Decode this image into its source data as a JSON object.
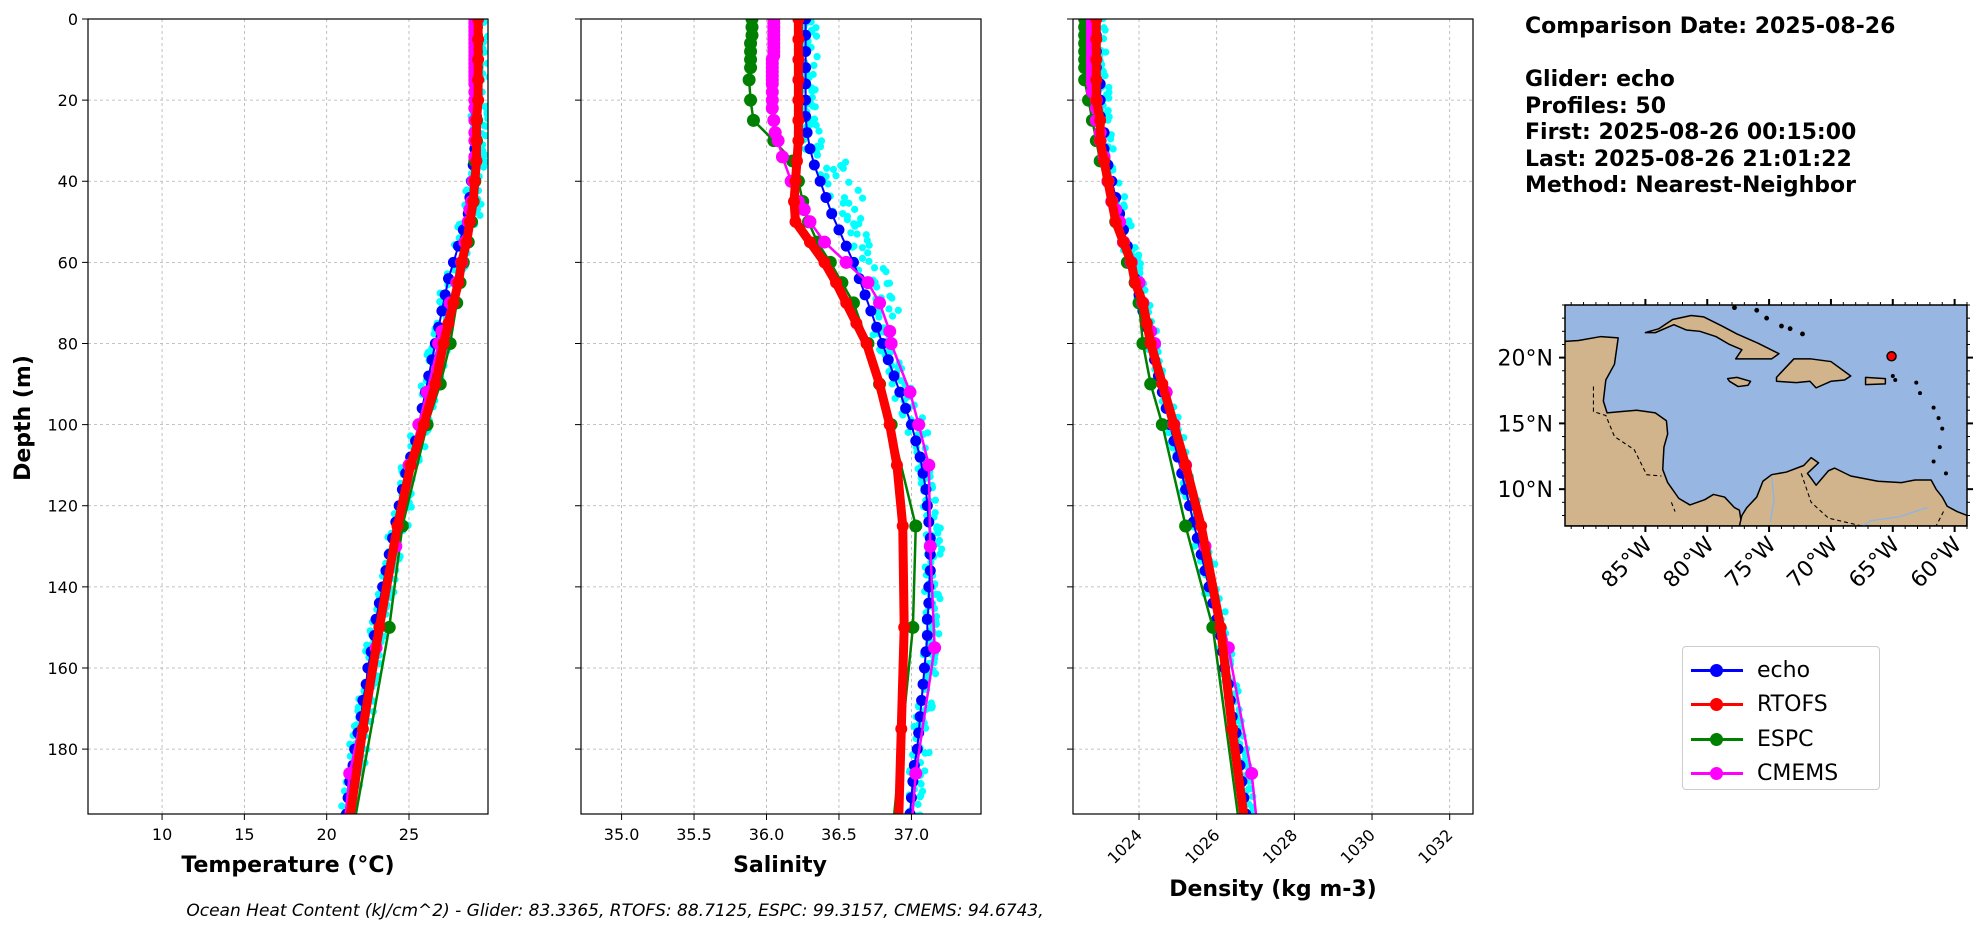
{
  "info": {
    "comparison_date": "Comparison Date: 2025-08-26",
    "glider": "Glider: echo",
    "profiles": "Profiles: 50",
    "first": "First: 2025-08-26 00:15:00",
    "last": "Last: 2025-08-26 21:01:22",
    "method": "Method: Nearest-Neighbor"
  },
  "footer": "Ocean Heat Content (kJ/cm^2) - Glider: 83.3365,  RTOFS: 88.7125,  ESPC: 99.3157,  CMEMS: 94.6743,",
  "colors": {
    "echo": "#0000ff",
    "RTOFS": "#ff0000",
    "ESPC": "#008000",
    "CMEMS": "#ff00ff",
    "glider_raw": "#00ffff",
    "land": "#d2b48c",
    "ocean": "#97b6e1"
  },
  "legend": [
    {
      "name": "echo",
      "color": "#0000ff"
    },
    {
      "name": "RTOFS",
      "color": "#ff0000"
    },
    {
      "name": "ESPC",
      "color": "#008000"
    },
    {
      "name": "CMEMS",
      "color": "#ff00ff"
    }
  ],
  "chart_data": [
    {
      "type": "line",
      "xlabel": "Temperature (°C)",
      "ylabel": "Depth (m)",
      "xlim": [
        5.5,
        29.8
      ],
      "ylim": [
        196,
        0
      ],
      "xticks": [
        10,
        15,
        20,
        25
      ],
      "yticks": [
        0,
        20,
        40,
        60,
        80,
        100,
        120,
        140,
        160,
        180
      ],
      "grid": true,
      "series": [
        {
          "name": "echo",
          "depth": [
            0,
            4,
            8,
            12,
            16,
            20,
            24,
            28,
            32,
            36,
            40,
            44,
            48,
            52,
            56,
            60,
            64,
            68,
            72,
            76,
            80,
            84,
            88,
            92,
            96,
            100,
            104,
            108,
            112,
            116,
            120,
            124,
            128,
            132,
            136,
            140,
            144,
            148,
            152,
            156,
            160,
            164,
            168,
            172,
            176,
            180,
            184,
            188,
            192,
            196
          ],
          "values": [
            29.1,
            29.1,
            29.1,
            29.1,
            29.1,
            29.1,
            29.1,
            29.0,
            29.0,
            28.9,
            28.8,
            28.7,
            28.6,
            28.3,
            28.0,
            27.7,
            27.4,
            27.2,
            27.0,
            26.8,
            26.6,
            26.4,
            26.2,
            26.0,
            25.8,
            25.6,
            25.4,
            25.1,
            24.8,
            24.6,
            24.4,
            24.2,
            24.0,
            23.8,
            23.6,
            23.4,
            23.2,
            23.0,
            22.9,
            22.7,
            22.5,
            22.4,
            22.2,
            22.1,
            21.9,
            21.7,
            21.6,
            21.4,
            21.3,
            21.2
          ]
        },
        {
          "name": "RTOFS",
          "depth": [
            0,
            5,
            10,
            15,
            20,
            25,
            30,
            35,
            40,
            45,
            50,
            55,
            60,
            65,
            70,
            75,
            80,
            90,
            100,
            110,
            125,
            150,
            175,
            200
          ],
          "values": [
            29.2,
            29.2,
            29.2,
            29.2,
            29.2,
            29.1,
            29.1,
            29.1,
            29.0,
            28.9,
            28.7,
            28.5,
            28.2,
            28.0,
            27.7,
            27.4,
            27.1,
            26.6,
            25.9,
            25.1,
            24.3,
            23.2,
            22.2,
            21.3
          ]
        },
        {
          "name": "ESPC",
          "depth": [
            0,
            2,
            4,
            6,
            8,
            10,
            12,
            15,
            20,
            25,
            30,
            35,
            40,
            45,
            50,
            55,
            60,
            65,
            70,
            80,
            90,
            100,
            125,
            150,
            200
          ],
          "values": [
            29.1,
            29.1,
            29.1,
            29.1,
            29.1,
            29.1,
            29.1,
            29.1,
            29.1,
            29.1,
            29.1,
            29.0,
            29.0,
            28.9,
            28.8,
            28.6,
            28.3,
            28.1,
            27.9,
            27.5,
            26.9,
            26.1,
            24.6,
            23.8,
            21.6
          ]
        },
        {
          "name": "CMEMS",
          "depth": [
            0,
            1,
            2,
            3,
            4,
            5,
            6,
            7,
            8,
            9,
            10,
            11,
            12,
            13,
            14,
            15,
            16,
            18,
            20,
            22,
            25,
            28,
            30,
            34,
            40,
            45,
            47,
            50,
            55,
            60,
            65,
            70,
            77,
            80,
            92,
            100,
            110,
            130,
            155,
            186,
            222
          ],
          "values": [
            29.0,
            29.0,
            29.0,
            29.0,
            29.0,
            29.0,
            29.0,
            29.0,
            29.0,
            29.0,
            29.0,
            29.0,
            29.0,
            29.0,
            29.0,
            29.0,
            29.0,
            29.0,
            29.0,
            29.0,
            29.0,
            29.0,
            29.0,
            29.0,
            28.9,
            28.8,
            28.7,
            28.6,
            28.4,
            28.2,
            27.9,
            27.5,
            27.0,
            26.8,
            26.1,
            25.6,
            25.0,
            24.2,
            23.0,
            21.4,
            20.5
          ]
        }
      ],
      "glider_raw": {
        "name": "glider",
        "depth_range": [
          0,
          196
        ],
        "value_center": [
          29.0,
          27.5,
          25.2,
          23.5,
          21.8
        ],
        "spread": 0.8
      }
    },
    {
      "type": "line",
      "xlabel": "Salinity",
      "xlim": [
        34.72,
        37.48
      ],
      "ylim": [
        196,
        0
      ],
      "xticks": [
        35.0,
        35.5,
        36.0,
        36.5,
        37.0
      ],
      "grid": true,
      "series": [
        {
          "name": "echo",
          "depth": [
            0,
            4,
            8,
            12,
            16,
            20,
            24,
            28,
            32,
            36,
            40,
            44,
            48,
            52,
            56,
            60,
            64,
            68,
            72,
            76,
            80,
            84,
            88,
            92,
            96,
            100,
            104,
            108,
            112,
            116,
            120,
            124,
            128,
            132,
            136,
            140,
            144,
            148,
            152,
            156,
            160,
            164,
            168,
            172,
            176,
            180,
            184,
            188,
            192,
            196
          ],
          "values": [
            36.27,
            36.27,
            36.27,
            36.27,
            36.27,
            36.27,
            36.27,
            36.28,
            36.3,
            36.33,
            36.37,
            36.41,
            36.45,
            36.5,
            36.55,
            36.6,
            36.64,
            36.68,
            36.72,
            36.76,
            36.8,
            36.84,
            36.88,
            36.92,
            36.96,
            37.0,
            37.03,
            37.06,
            37.08,
            37.1,
            37.11,
            37.12,
            37.13,
            37.13,
            37.13,
            37.12,
            37.12,
            37.11,
            37.11,
            37.1,
            37.09,
            37.08,
            37.07,
            37.06,
            37.05,
            37.04,
            37.02,
            37.01,
            37.0,
            36.99
          ]
        },
        {
          "name": "RTOFS",
          "depth": [
            0,
            5,
            10,
            15,
            20,
            25,
            30,
            35,
            40,
            45,
            50,
            55,
            60,
            65,
            70,
            75,
            80,
            90,
            100,
            110,
            125,
            150,
            175,
            200
          ],
          "values": [
            36.22,
            36.22,
            36.22,
            36.22,
            36.22,
            36.22,
            36.22,
            36.21,
            36.2,
            36.19,
            36.2,
            36.3,
            36.4,
            36.48,
            36.55,
            36.62,
            36.69,
            36.78,
            36.85,
            36.9,
            36.94,
            36.95,
            36.93,
            36.91
          ]
        },
        {
          "name": "ESPC",
          "depth": [
            0,
            2,
            4,
            6,
            8,
            10,
            12,
            15,
            20,
            25,
            30,
            35,
            40,
            45,
            50,
            55,
            60,
            65,
            70,
            80,
            90,
            100,
            125,
            150,
            200
          ],
          "values": [
            35.9,
            35.9,
            35.9,
            35.89,
            35.89,
            35.89,
            35.89,
            35.88,
            35.89,
            35.91,
            36.05,
            36.18,
            36.22,
            36.25,
            36.29,
            36.35,
            36.44,
            36.52,
            36.6,
            36.7,
            36.78,
            36.86,
            37.03,
            37.01,
            36.87
          ]
        },
        {
          "name": "CMEMS",
          "depth": [
            0,
            1,
            2,
            3,
            4,
            5,
            6,
            7,
            8,
            9,
            10,
            11,
            12,
            13,
            14,
            15,
            16,
            18,
            20,
            22,
            25,
            28,
            30,
            34,
            40,
            45,
            47,
            50,
            55,
            60,
            65,
            70,
            77,
            80,
            92,
            100,
            110,
            130,
            155,
            186,
            222
          ],
          "values": [
            36.05,
            36.05,
            36.05,
            36.05,
            36.05,
            36.05,
            36.05,
            36.05,
            36.05,
            36.05,
            36.04,
            36.04,
            36.04,
            36.04,
            36.04,
            36.04,
            36.04,
            36.04,
            36.04,
            36.04,
            36.05,
            36.06,
            36.08,
            36.11,
            36.17,
            36.22,
            36.26,
            36.3,
            36.4,
            36.55,
            36.7,
            36.78,
            36.85,
            36.86,
            36.99,
            37.05,
            37.12,
            37.13,
            37.16,
            37.03,
            36.95
          ]
        }
      ],
      "glider_raw": {
        "name": "glider",
        "depth_range": [
          0,
          196
        ]
      }
    },
    {
      "type": "line",
      "xlabel": "Density (kg m-3)",
      "xlim": [
        1022.3,
        1032.6
      ],
      "ylim": [
        196,
        0
      ],
      "xticks": [
        1024,
        1026,
        1028,
        1030,
        1032
      ],
      "grid": true,
      "series": [
        {
          "name": "echo",
          "depth": [
            0,
            4,
            8,
            12,
            16,
            20,
            24,
            28,
            32,
            36,
            40,
            44,
            48,
            52,
            56,
            60,
            64,
            68,
            72,
            76,
            80,
            84,
            88,
            92,
            96,
            100,
            104,
            108,
            112,
            116,
            120,
            124,
            128,
            132,
            136,
            140,
            144,
            148,
            152,
            156,
            160,
            164,
            168,
            172,
            176,
            180,
            184,
            188,
            192,
            196
          ],
          "values": [
            1022.9,
            1022.9,
            1022.9,
            1022.9,
            1023.0,
            1023.0,
            1023.0,
            1023.1,
            1023.1,
            1023.2,
            1023.3,
            1023.4,
            1023.5,
            1023.6,
            1023.7,
            1023.8,
            1023.9,
            1024.0,
            1024.1,
            1024.2,
            1024.3,
            1024.4,
            1024.5,
            1024.6,
            1024.7,
            1024.8,
            1024.9,
            1025.0,
            1025.1,
            1025.2,
            1025.3,
            1025.4,
            1025.5,
            1025.6,
            1025.7,
            1025.8,
            1025.9,
            1026.0,
            1026.1,
            1026.15,
            1026.2,
            1026.3,
            1026.35,
            1026.4,
            1026.5,
            1026.55,
            1026.6,
            1026.65,
            1026.7,
            1026.75
          ]
        },
        {
          "name": "RTOFS",
          "depth": [
            0,
            5,
            10,
            15,
            20,
            25,
            30,
            35,
            40,
            45,
            50,
            55,
            60,
            65,
            70,
            75,
            80,
            90,
            100,
            110,
            125,
            150,
            175,
            200
          ],
          "values": [
            1022.9,
            1022.9,
            1022.9,
            1022.9,
            1022.9,
            1023.0,
            1023.0,
            1023.1,
            1023.2,
            1023.3,
            1023.4,
            1023.6,
            1023.8,
            1023.9,
            1024.1,
            1024.2,
            1024.3,
            1024.6,
            1024.9,
            1025.2,
            1025.6,
            1026.1,
            1026.4,
            1026.75
          ]
        },
        {
          "name": "ESPC",
          "depth": [
            0,
            2,
            4,
            6,
            8,
            10,
            12,
            15,
            20,
            25,
            30,
            35,
            40,
            45,
            50,
            55,
            60,
            65,
            70,
            80,
            90,
            100,
            125,
            150,
            200
          ],
          "values": [
            1022.6,
            1022.6,
            1022.6,
            1022.6,
            1022.6,
            1022.6,
            1022.6,
            1022.6,
            1022.7,
            1022.8,
            1022.9,
            1023.0,
            1023.2,
            1023.3,
            1023.4,
            1023.6,
            1023.7,
            1023.9,
            1024.0,
            1024.1,
            1024.3,
            1024.6,
            1025.2,
            1025.9,
            1026.6
          ]
        },
        {
          "name": "CMEMS",
          "depth": [
            0,
            1,
            2,
            3,
            4,
            5,
            6,
            7,
            8,
            9,
            10,
            11,
            12,
            13,
            14,
            15,
            16,
            18,
            20,
            22,
            25,
            28,
            30,
            34,
            40,
            45,
            47,
            50,
            55,
            60,
            65,
            70,
            77,
            80,
            92,
            100,
            110,
            130,
            155,
            186,
            222
          ],
          "values": [
            1022.8,
            1022.8,
            1022.8,
            1022.8,
            1022.8,
            1022.8,
            1022.8,
            1022.8,
            1022.8,
            1022.8,
            1022.8,
            1022.8,
            1022.8,
            1022.8,
            1022.8,
            1022.8,
            1022.8,
            1022.8,
            1022.9,
            1022.9,
            1022.9,
            1023.0,
            1023.0,
            1023.1,
            1023.2,
            1023.3,
            1023.4,
            1023.5,
            1023.6,
            1023.8,
            1024.0,
            1024.1,
            1024.3,
            1024.4,
            1024.7,
            1024.9,
            1025.2,
            1025.7,
            1026.3,
            1026.9,
            1027.3
          ]
        }
      ],
      "glider_raw": {
        "name": "glider",
        "depth_range": [
          0,
          196
        ]
      }
    },
    {
      "type": "map",
      "lon_range": [
        -91.5,
        -59.0
      ],
      "lat_range": [
        7.2,
        24.0
      ],
      "xticks": [
        "85°W",
        "80°W",
        "75°W",
        "70°W",
        "65°W",
        "60°W"
      ],
      "xtick_values": [
        -85,
        -80,
        -75,
        -70,
        -65,
        -60
      ],
      "yticks": [
        "20°N",
        "15°N",
        "10°N"
      ],
      "ytick_values": [
        20,
        15,
        10
      ],
      "marker": {
        "lon": -65.1,
        "lat": 20.1,
        "color": "#ff0000"
      }
    }
  ]
}
